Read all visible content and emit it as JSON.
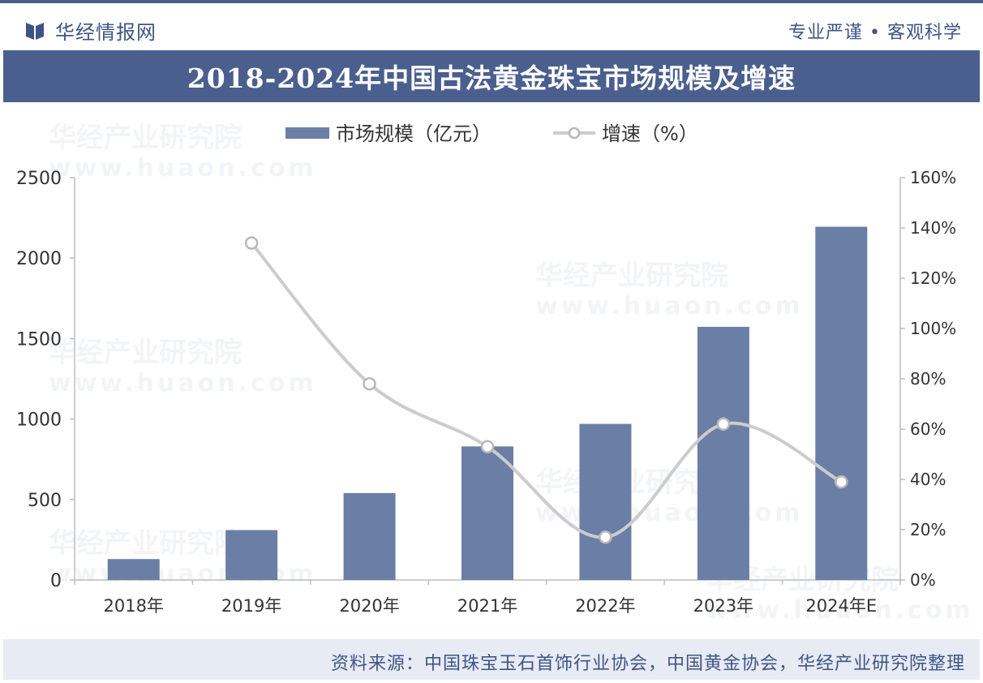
{
  "header": {
    "brand_name": "华经情报网",
    "motto": "专业严谨 • 客观科学"
  },
  "watermark": {
    "name": "华经产业研究院",
    "url": "www.huaon.com"
  },
  "chart_data": {
    "type": "bar",
    "title": "2018-2024年中国古法黄金珠宝市场规模及增速",
    "categories": [
      "2018年",
      "2019年",
      "2020年",
      "2021年",
      "2022年",
      "2023年",
      "2024年E"
    ],
    "series": [
      {
        "name": "市场规模（亿元）",
        "type": "bar",
        "axis": "left",
        "color": "#6b7ea6",
        "values": [
          130,
          310,
          540,
          830,
          970,
          1573,
          2195
        ]
      },
      {
        "name": "增速（%）",
        "type": "line",
        "axis": "right",
        "color": "#cccccc",
        "values": [
          null,
          134,
          78,
          53,
          17,
          62,
          39
        ]
      }
    ],
    "y_left": {
      "min": 0,
      "max": 2500,
      "ticks": [
        "0",
        "500",
        "1000",
        "1500",
        "2000",
        "2500"
      ]
    },
    "y_right": {
      "min": 0,
      "max": 160,
      "ticks": [
        "0%",
        "20%",
        "40%",
        "60%",
        "80%",
        "100%",
        "120%",
        "140%",
        "160%"
      ]
    },
    "legend_position": "top-center",
    "grid": false
  },
  "footer": {
    "source": "资料来源：中国珠宝玉石首饰行业协会，中国黄金协会，华经产业研究院整理"
  }
}
